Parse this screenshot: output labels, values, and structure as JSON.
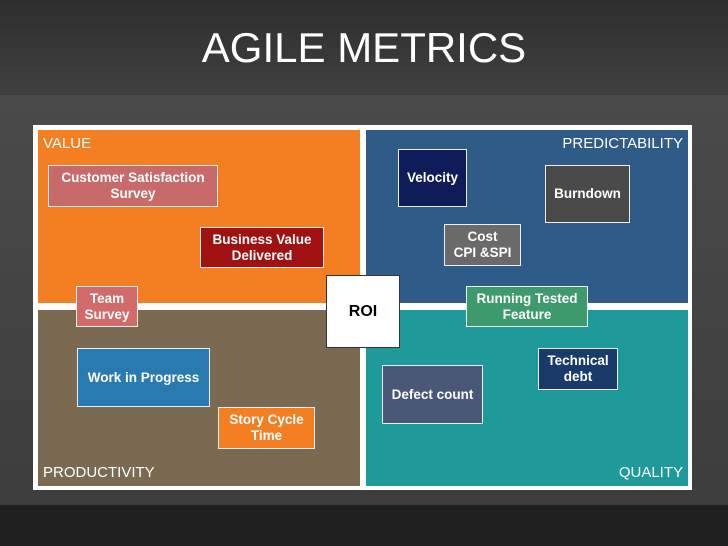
{
  "header": {
    "title": "AGILE METRICS"
  },
  "quadrants": [
    {
      "label": "VALUE"
    },
    {
      "label": "PREDICTABILITY"
    },
    {
      "label": "PRODUCTIVITY"
    },
    {
      "label": "QUALITY"
    }
  ],
  "center": {
    "label": "ROI"
  },
  "boxes": [
    {
      "lines": [
        "Customer Satisfaction",
        "Survey"
      ]
    },
    {
      "lines": [
        "Business Value",
        "Delivered"
      ]
    },
    {
      "lines": [
        "Team",
        "Survey"
      ]
    },
    {
      "lines": [
        "Velocity"
      ]
    },
    {
      "lines": [
        "Burndown"
      ]
    },
    {
      "lines": [
        "Cost",
        "CPI &SPI"
      ]
    },
    {
      "lines": [
        "Running Tested",
        "Feature"
      ]
    },
    {
      "lines": [
        "Work in Progress"
      ]
    },
    {
      "lines": [
        "Story Cycle",
        "Time"
      ]
    },
    {
      "lines": [
        "Technical",
        "debt"
      ]
    },
    {
      "lines": [
        "Defect count"
      ]
    }
  ]
}
